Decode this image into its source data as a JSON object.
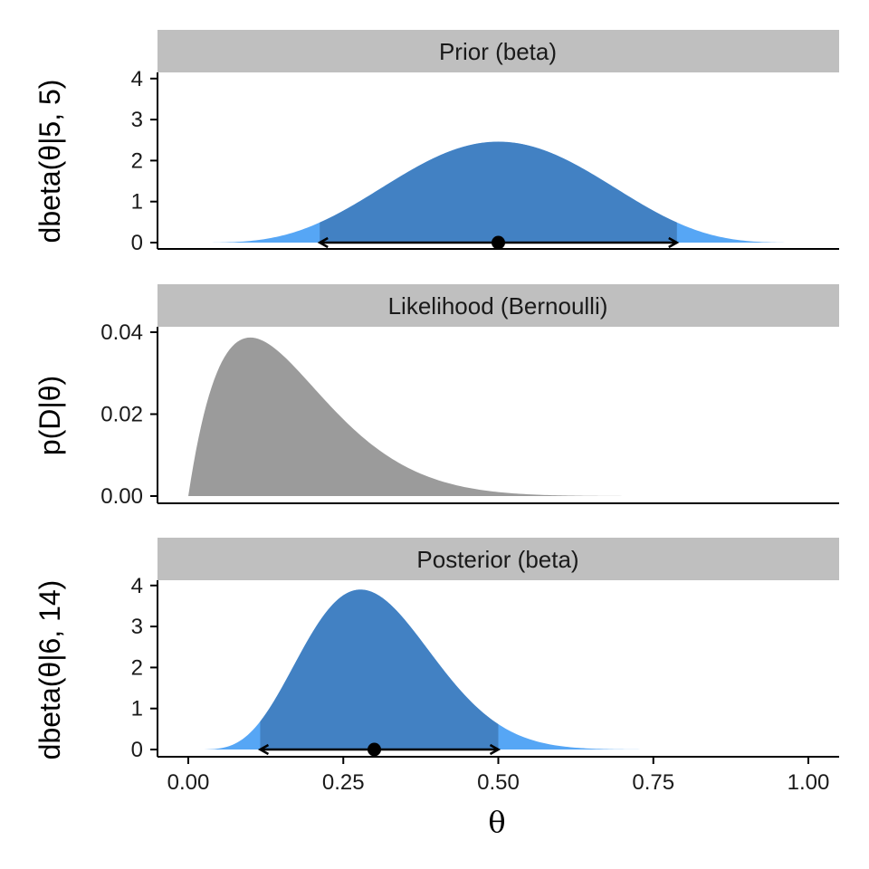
{
  "chart_data": [
    {
      "type": "area",
      "panel": "prior",
      "strip_title": "Prior (beta)",
      "ylabel": "dbeta(θ|5, 5)",
      "distribution": "beta",
      "shape1": 5,
      "shape2": 5,
      "xlim": [
        0,
        1
      ],
      "ylim": [
        0,
        4
      ],
      "y_ticks": [
        0,
        1,
        2,
        3,
        4
      ],
      "y_tick_labels": [
        "0",
        "1",
        "2",
        "3",
        "4"
      ],
      "peak_density": 2.46,
      "interval": [
        0.212,
        0.788
      ],
      "point_estimate": 0.5,
      "colors": {
        "interval_fill": "#4281c3",
        "tail_fill": "#56a6f5",
        "point": "#000000"
      }
    },
    {
      "type": "area",
      "panel": "likelihood",
      "strip_title": "Likelihood (Bernoulli)",
      "ylabel": "p(D|θ)",
      "distribution": "bernoulli-likelihood",
      "successes": 1,
      "failures": 9,
      "xlim": [
        0,
        1
      ],
      "ylim": [
        0,
        0.04
      ],
      "y_ticks": [
        0,
        0.02,
        0.04
      ],
      "y_tick_labels": [
        "0.00",
        "0.02",
        "0.04"
      ],
      "peak_value": 0.0387,
      "colors": {
        "fill": "#9b9b9b"
      }
    },
    {
      "type": "area",
      "panel": "posterior",
      "strip_title": "Posterior (beta)",
      "ylabel": "dbeta(θ|6, 14)",
      "distribution": "beta",
      "shape1": 6,
      "shape2": 14,
      "xlim": [
        0,
        1
      ],
      "ylim": [
        0,
        4
      ],
      "y_ticks": [
        0,
        1,
        2,
        3,
        4
      ],
      "y_tick_labels": [
        "0",
        "1",
        "2",
        "3",
        "4"
      ],
      "peak_density": 3.9,
      "interval": [
        0.116,
        0.5
      ],
      "point_estimate": 0.3,
      "xlabel": "θ",
      "x_ticks": [
        0,
        0.25,
        0.5,
        0.75,
        1
      ],
      "x_tick_labels": [
        "0.00",
        "0.25",
        "0.50",
        "0.75",
        "1.00"
      ],
      "colors": {
        "interval_fill": "#4281c3",
        "tail_fill": "#56a6f5",
        "point": "#000000"
      }
    }
  ],
  "colors": {
    "strip_background": "#bfbfbf",
    "axis": "#000000"
  }
}
